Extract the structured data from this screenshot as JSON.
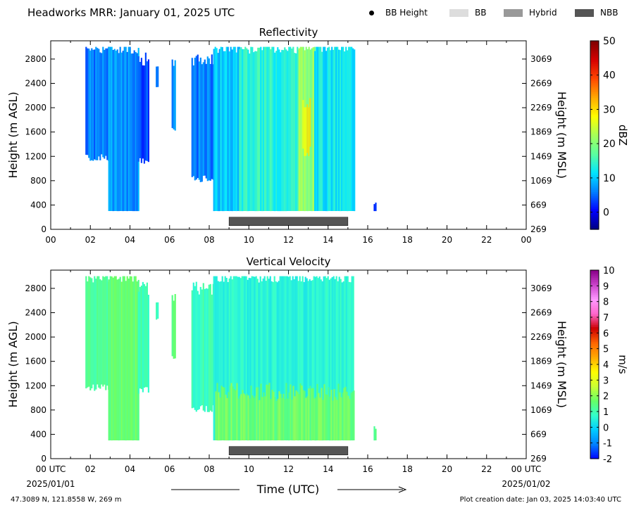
{
  "header": {
    "title": "Headworks MRR:  January 01, 2025 UTC"
  },
  "legend": {
    "items": [
      {
        "label": "BB Height",
        "marker": "dot",
        "color": "#000000"
      },
      {
        "label": "BB",
        "marker": "swatch",
        "color": "#dddddd"
      },
      {
        "label": "Hybrid",
        "marker": "swatch",
        "color": "#999999"
      },
      {
        "label": "NBB",
        "marker": "swatch",
        "color": "#555555"
      }
    ]
  },
  "footer": {
    "location": "47.3089 N, 121.8558 W, 269 m",
    "creation_date": "Plot creation date: Jan 03, 2025 14:03:40 UTC"
  },
  "x_axis": {
    "ticks": [
      "00",
      "02",
      "04",
      "06",
      "08",
      "10",
      "12",
      "14",
      "16",
      "18",
      "20",
      "22",
      "00"
    ],
    "ticks_bottom": [
      "00 UTC",
      "02",
      "04",
      "06",
      "08",
      "10",
      "12",
      "14",
      "16",
      "18",
      "20",
      "22",
      "00 UTC"
    ],
    "date_left": "2025/01/01",
    "date_right": "2025/01/02",
    "label": "Time (UTC)"
  },
  "chart_data": [
    {
      "type": "heatmap",
      "title": "Reflectivity",
      "ylabel_left": "Height (m AGL)",
      "ylabel_right": "Height (m MSL)",
      "xlim_hours": [
        0,
        24
      ],
      "ylim_m_agl": [
        0,
        3100
      ],
      "yticks_left": [
        0,
        400,
        800,
        1200,
        1600,
        2000,
        2400,
        2800
      ],
      "yticks_right": [
        "269",
        "669",
        "1069",
        "1469",
        "1869",
        "2269",
        "2669",
        "3069"
      ],
      "colorbar": {
        "label": "dBZ",
        "range": [
          -5,
          50
        ],
        "ticks": [
          0,
          10,
          20,
          30,
          40,
          50
        ],
        "colors": [
          "#00007f",
          "#0000ff",
          "#007fff",
          "#00e5ff",
          "#5affa0",
          "#a5ff5a",
          "#ffff00",
          "#ffaa00",
          "#ff4800",
          "#d60000",
          "#7f0000"
        ]
      },
      "echo_regions": [
        {
          "start_h": 1.75,
          "end_h": 2.9,
          "top_m": 3000,
          "bottom_m": 1150,
          "value_dbz": 6
        },
        {
          "start_h": 2.9,
          "end_h": 4.4,
          "top_m": 3000,
          "bottom_m": 300,
          "value_dbz": 7
        },
        {
          "start_h": 4.4,
          "end_h": 4.9,
          "top_m": 2800,
          "bottom_m": 1100,
          "value_dbz": 4
        },
        {
          "start_h": 5.3,
          "end_h": 5.4,
          "top_m": 2600,
          "bottom_m": 2300,
          "value_dbz": 6
        },
        {
          "start_h": 6.1,
          "end_h": 6.3,
          "top_m": 2700,
          "bottom_m": 1600,
          "value_dbz": 6
        },
        {
          "start_h": 7.1,
          "end_h": 8.2,
          "top_m": 2800,
          "bottom_m": 800,
          "value_dbz": 6
        },
        {
          "start_h": 8.2,
          "end_h": 9.5,
          "top_m": 3000,
          "bottom_m": 300,
          "value_dbz": 10
        },
        {
          "start_h": 9.5,
          "end_h": 12.5,
          "top_m": 3000,
          "bottom_m": 300,
          "value_dbz": 14
        },
        {
          "start_h": 12.5,
          "end_h": 13.3,
          "top_m": 3000,
          "bottom_m": 300,
          "value_dbz": 21
        },
        {
          "start_h": 13.3,
          "end_h": 15.3,
          "top_m": 3000,
          "bottom_m": 300,
          "value_dbz": 12
        },
        {
          "start_h": 16.3,
          "end_h": 16.4,
          "top_m": 500,
          "bottom_m": 300,
          "value_dbz": 4
        }
      ],
      "peak_cells": [
        {
          "start_h": 12.7,
          "end_h": 13.1,
          "top_m": 2100,
          "bottom_m": 1300,
          "value_dbz": 30
        }
      ],
      "classification_bars": [
        {
          "type": "NBB",
          "start_h": 9.0,
          "end_h": 15.0
        }
      ]
    },
    {
      "type": "heatmap",
      "title": "Vertical Velocity",
      "ylabel_left": "Height (m AGL)",
      "ylabel_right": "Height (m MSL)",
      "xlim_hours": [
        0,
        24
      ],
      "ylim_m_agl": [
        0,
        3100
      ],
      "yticks_left": [
        0,
        400,
        800,
        1200,
        1600,
        2000,
        2400,
        2800
      ],
      "yticks_right": [
        "269",
        "669",
        "1069",
        "1469",
        "1869",
        "2269",
        "2669",
        "3069"
      ],
      "colorbar": {
        "label": "m/s",
        "range": [
          -2,
          10
        ],
        "ticks": [
          -2,
          -1,
          0,
          1,
          2,
          3,
          4,
          5,
          6,
          7,
          8,
          9,
          10
        ],
        "colors": [
          "#0000ff",
          "#0080ff",
          "#00ccff",
          "#33ffcc",
          "#66ff66",
          "#ccff33",
          "#ffff00",
          "#ffaa00",
          "#ff6600",
          "#cc0000",
          "#ff66cc",
          "#ff99ff",
          "#cc44cc",
          "#880088"
        ]
      },
      "echo_regions": [
        {
          "start_h": 1.75,
          "end_h": 2.9,
          "top_m": 3000,
          "bottom_m": 1150,
          "value_ms": 1.3
        },
        {
          "start_h": 2.9,
          "end_h": 4.4,
          "top_m": 3000,
          "bottom_m": 300,
          "value_ms": 1.6
        },
        {
          "start_h": 4.4,
          "end_h": 4.9,
          "top_m": 2800,
          "bottom_m": 1100,
          "value_ms": 1.0
        },
        {
          "start_h": 5.3,
          "end_h": 5.4,
          "top_m": 2600,
          "bottom_m": 2300,
          "value_ms": 1.0
        },
        {
          "start_h": 6.1,
          "end_h": 6.3,
          "top_m": 2700,
          "bottom_m": 1600,
          "value_ms": 1.4
        },
        {
          "start_h": 7.1,
          "end_h": 8.2,
          "top_m": 2800,
          "bottom_m": 800,
          "value_ms": 0.9
        },
        {
          "start_h": 8.2,
          "end_h": 15.3,
          "top_m": 3000,
          "bottom_m": 300,
          "value_ms": 0.6
        },
        {
          "start_h": 16.3,
          "end_h": 16.4,
          "top_m": 500,
          "bottom_m": 300,
          "value_ms": 1.2
        }
      ],
      "low_level_band": {
        "start_h": 8.3,
        "end_h": 15.3,
        "top_m": 1100,
        "bottom_m": 300,
        "value_ms": 1.8
      },
      "classification_bars": [
        {
          "type": "NBB",
          "start_h": 9.0,
          "end_h": 15.0
        }
      ]
    }
  ]
}
